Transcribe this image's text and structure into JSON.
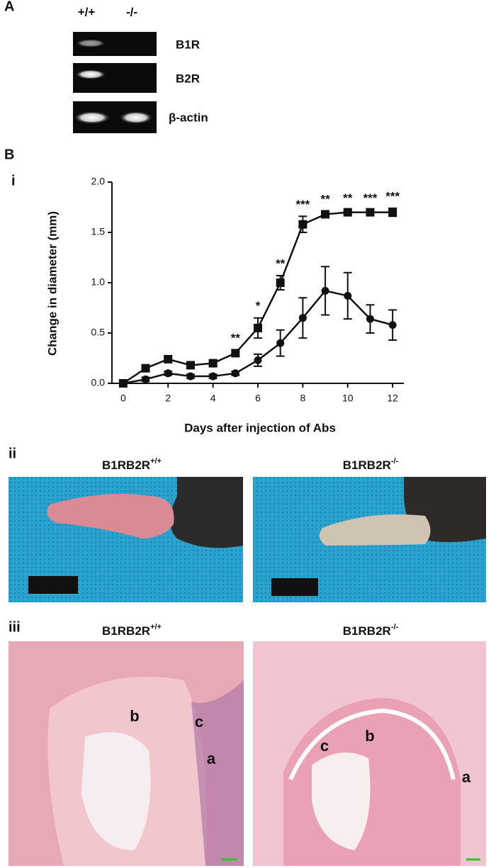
{
  "panel_a": {
    "label": "A",
    "genotypes": [
      "+/+",
      "-/-"
    ],
    "bands": [
      "B1R",
      "B2R",
      "β-actin"
    ]
  },
  "panel_b": {
    "label": "B",
    "sub_i": "i",
    "sub_ii": "ii",
    "sub_iii": "iii",
    "photo_labels": [
      {
        "text": "B1RB2R",
        "sup": "+/+"
      },
      {
        "text": "B1RB2R",
        "sup": "-/-"
      }
    ],
    "histology_labels": [
      {
        "text": "B1RB2R",
        "sup": "+/+"
      },
      {
        "text": "B1RB2R",
        "sup": "-/-"
      }
    ],
    "histology_letters": [
      [
        "b",
        "c",
        "a"
      ],
      [
        "c",
        "b",
        "a"
      ]
    ]
  },
  "chart_data": {
    "type": "line",
    "y_label": "Change in diameter (mm)",
    "x_label": "Days after injection of Abs",
    "x": [
      0,
      1,
      2,
      3,
      4,
      5,
      6,
      7,
      8,
      9,
      10,
      11,
      12
    ],
    "series": [
      {
        "marker": "square",
        "color": "#111111",
        "values": [
          0,
          0.15,
          0.24,
          0.18,
          0.2,
          0.3,
          0.55,
          1.0,
          1.58,
          1.68,
          1.7,
          1.7,
          1.7
        ],
        "errors": [
          0,
          0.02,
          0.03,
          0.03,
          0.03,
          0.03,
          0.1,
          0.07,
          0.08,
          0.03,
          0.02,
          0.02,
          0.04
        ]
      },
      {
        "marker": "circle",
        "color": "#111111",
        "values": [
          0,
          0.04,
          0.1,
          0.07,
          0.07,
          0.1,
          0.23,
          0.4,
          0.65,
          0.92,
          0.87,
          0.64,
          0.58
        ],
        "errors": [
          0,
          0.02,
          0.02,
          0.02,
          0.02,
          0.02,
          0.06,
          0.13,
          0.2,
          0.24,
          0.23,
          0.14,
          0.15
        ]
      }
    ],
    "annotations": [
      {
        "x": 5,
        "text": "**"
      },
      {
        "x": 6,
        "text": "*"
      },
      {
        "x": 7,
        "text": "**"
      },
      {
        "x": 8,
        "text": "***"
      },
      {
        "x": 9,
        "text": "**"
      },
      {
        "x": 10,
        "text": "**"
      },
      {
        "x": 11,
        "text": "***"
      },
      {
        "x": 12,
        "text": "***"
      }
    ],
    "xlim": [
      -0.5,
      12.5
    ],
    "ylim": [
      0,
      2.0
    ],
    "xticks": [
      0,
      2,
      4,
      6,
      8,
      10,
      12
    ],
    "yticks": [
      {
        "value": 0,
        "label": "0.0"
      },
      {
        "value": 0.5,
        "label": "0.5"
      },
      {
        "value": 1.0,
        "label": "1.0"
      },
      {
        "value": 1.5,
        "label": "1.5"
      },
      {
        "value": 2.0,
        "label": "2.0"
      }
    ]
  }
}
